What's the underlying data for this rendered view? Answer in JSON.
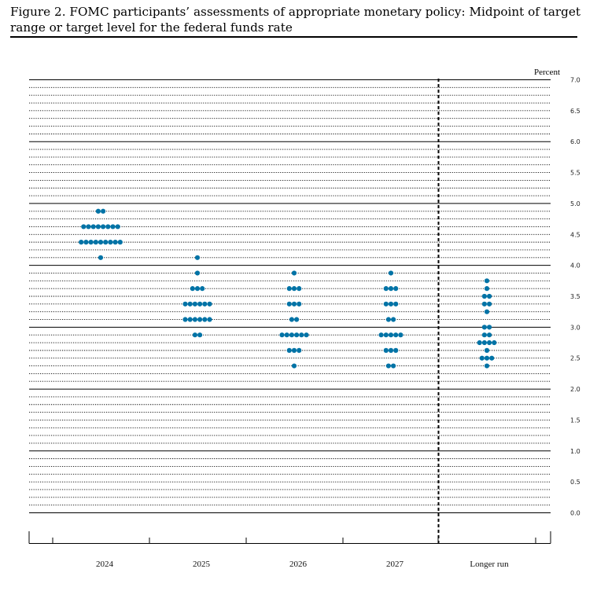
{
  "figure": {
    "title": "Figure 2.  FOMC participants’ assessments of appropriate monetary policy:  Midpoint of target range or target level for the federal funds rate"
  },
  "chart_data": {
    "type": "scatter",
    "subtype": "dot plot",
    "unit_label": "Percent",
    "categories": [
      "2024",
      "2025",
      "2026",
      "2027",
      "Longer run"
    ],
    "ylim": [
      0,
      7
    ],
    "y_ticks": [
      "0.0",
      "0.5",
      "1.0",
      "1.5",
      "2.0",
      "2.5",
      "3.0",
      "3.5",
      "4.0",
      "4.5",
      "5.0",
      "5.5",
      "6.0",
      "6.5",
      "7.0"
    ],
    "grid": "solid at whole percents, dotted at every 0.125",
    "separator": "dashed vertical line before Longer run",
    "dot_color": "#0073a6",
    "dots": [
      {
        "category": "2024",
        "y": 4.875,
        "count": 2
      },
      {
        "category": "2024",
        "y": 4.625,
        "count": 8
      },
      {
        "category": "2024",
        "y": 4.375,
        "count": 9
      },
      {
        "category": "2024",
        "y": 4.125,
        "count": 1
      },
      {
        "category": "2025",
        "y": 4.125,
        "count": 1
      },
      {
        "category": "2025",
        "y": 3.875,
        "count": 1
      },
      {
        "category": "2025",
        "y": 3.625,
        "count": 3
      },
      {
        "category": "2025",
        "y": 3.375,
        "count": 6
      },
      {
        "category": "2025",
        "y": 3.125,
        "count": 6
      },
      {
        "category": "2025",
        "y": 2.875,
        "count": 2
      },
      {
        "category": "2026",
        "y": 3.875,
        "count": 1
      },
      {
        "category": "2026",
        "y": 3.625,
        "count": 3
      },
      {
        "category": "2026",
        "y": 3.375,
        "count": 3
      },
      {
        "category": "2026",
        "y": 3.125,
        "count": 2
      },
      {
        "category": "2026",
        "y": 2.875,
        "count": 6
      },
      {
        "category": "2026",
        "y": 2.625,
        "count": 3
      },
      {
        "category": "2026",
        "y": 2.375,
        "count": 1
      },
      {
        "category": "2027",
        "y": 3.875,
        "count": 1
      },
      {
        "category": "2027",
        "y": 3.625,
        "count": 3
      },
      {
        "category": "2027",
        "y": 3.375,
        "count": 3
      },
      {
        "category": "2027",
        "y": 3.125,
        "count": 2
      },
      {
        "category": "2027",
        "y": 2.875,
        "count": 5
      },
      {
        "category": "2027",
        "y": 2.625,
        "count": 3
      },
      {
        "category": "2027",
        "y": 2.375,
        "count": 2
      },
      {
        "category": "Longer run",
        "y": 3.75,
        "count": 1
      },
      {
        "category": "Longer run",
        "y": 3.625,
        "count": 1
      },
      {
        "category": "Longer run",
        "y": 3.5,
        "count": 2
      },
      {
        "category": "Longer run",
        "y": 3.375,
        "count": 2
      },
      {
        "category": "Longer run",
        "y": 3.25,
        "count": 1
      },
      {
        "category": "Longer run",
        "y": 3.0,
        "count": 2
      },
      {
        "category": "Longer run",
        "y": 2.875,
        "count": 2
      },
      {
        "category": "Longer run",
        "y": 2.75,
        "count": 4
      },
      {
        "category": "Longer run",
        "y": 2.625,
        "count": 1
      },
      {
        "category": "Longer run",
        "y": 2.5,
        "count": 3
      },
      {
        "category": "Longer run",
        "y": 2.375,
        "count": 1
      }
    ]
  }
}
